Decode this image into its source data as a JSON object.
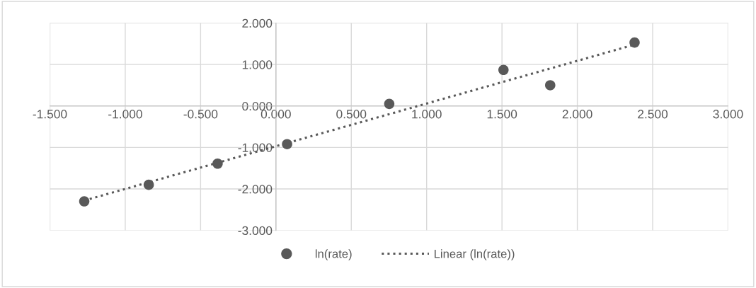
{
  "chart_data": {
    "type": "scatter",
    "series": [
      {
        "name": "ln(rate)",
        "color": "#595959",
        "marker": "circle",
        "x": [
          -1.272,
          -0.844,
          -0.387,
          0.074,
          0.752,
          1.51,
          1.82,
          2.38
        ],
        "values": [
          -2.3,
          -1.9,
          -1.39,
          -0.92,
          0.05,
          0.87,
          0.5,
          1.53
        ]
      },
      {
        "name": "Linear (ln(rate))",
        "type": "line",
        "color": "#595959",
        "line_style": "dotted",
        "x": [
          -1.272,
          2.38
        ],
        "values": [
          -2.28,
          1.48
        ]
      }
    ],
    "xlim": [
      -1.5,
      3.0
    ],
    "xticks": [
      {
        "value": -1.5,
        "label": "-1.500"
      },
      {
        "value": -1.0,
        "label": "-1.000"
      },
      {
        "value": -0.5,
        "label": "-0.500"
      },
      {
        "value": 0,
        "label": "0.000"
      },
      {
        "value": 0.5,
        "label": "0.500"
      },
      {
        "value": 1.0,
        "label": "1.000"
      },
      {
        "value": 1.5,
        "label": "1.500"
      },
      {
        "value": 2.0,
        "label": "2.000"
      },
      {
        "value": 2.5,
        "label": "2.500"
      },
      {
        "value": 3.0,
        "label": "3.000"
      }
    ],
    "ylim": [
      -3.0,
      2.0
    ],
    "yticks": [
      {
        "value": -3,
        "label": "-3.000"
      },
      {
        "value": -2,
        "label": "-2.000"
      },
      {
        "value": -1,
        "label": "-1.000"
      },
      {
        "value": 0,
        "label": "0.000"
      },
      {
        "value": 1,
        "label": "1.000"
      },
      {
        "value": 2,
        "label": "2.000"
      }
    ],
    "grid": true,
    "legend": "bottom"
  }
}
